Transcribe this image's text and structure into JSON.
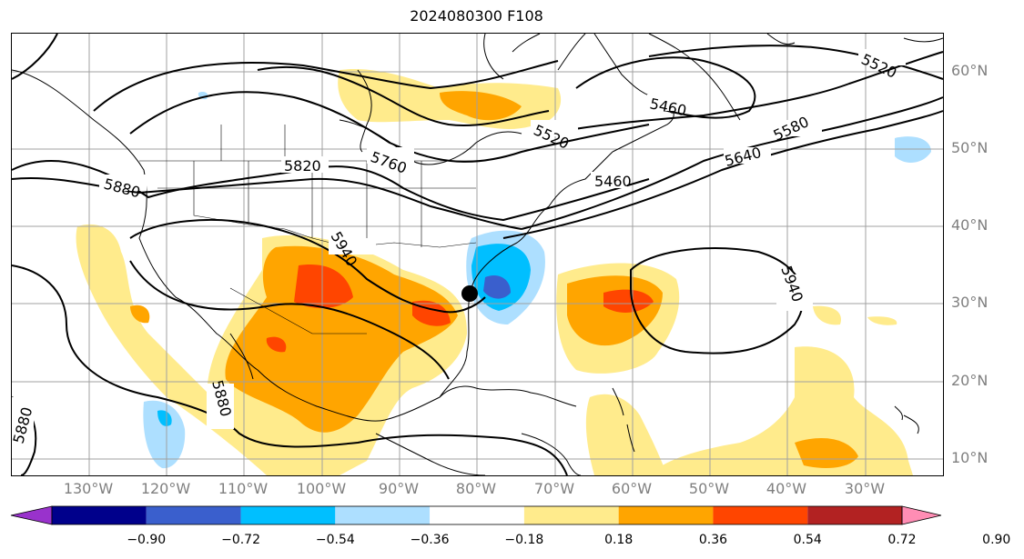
{
  "title": "2024080300 F108",
  "lat_labels": [
    "60°N",
    "50°N",
    "40°N",
    "30°N",
    "20°N",
    "10°N"
  ],
  "lon_labels": [
    "130°W",
    "120°W",
    "110°W",
    "100°W",
    "90°W",
    "80°W",
    "70°W",
    "60°W",
    "50°W",
    "40°W",
    "30°W"
  ],
  "contour_labels": [
    "5880",
    "5820",
    "5760",
    "5520",
    "5460",
    "5520",
    "5580",
    "5640",
    "5460",
    "5940",
    "5940",
    "5880",
    "5880"
  ],
  "colorbar": {
    "ticks": [
      "−0.90",
      "−0.72",
      "−0.54",
      "−0.36",
      "−0.18",
      "0.18",
      "0.36",
      "0.54",
      "0.72",
      "0.90"
    ],
    "colors": [
      "#9932cc",
      "#00008b",
      "#3a5fcd",
      "#00bfff",
      "#addfff",
      "#ffffff",
      "#ffeb8c",
      "#ffa500",
      "#ff4500",
      "#b22222",
      "#ff8db4"
    ]
  }
}
